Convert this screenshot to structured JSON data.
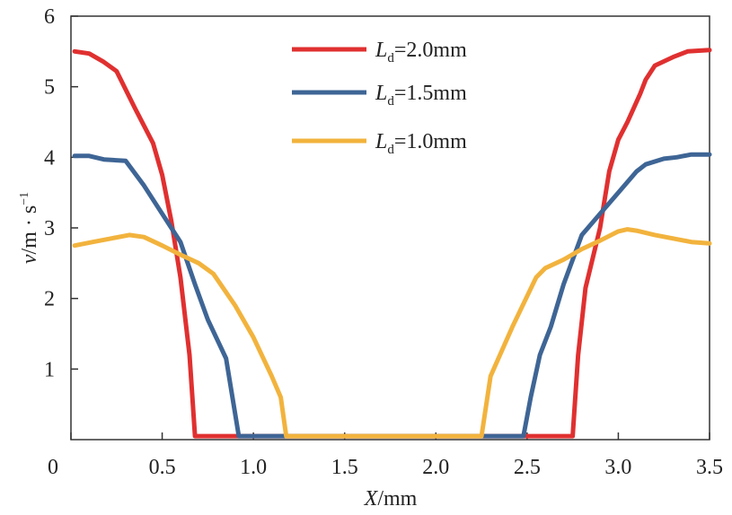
{
  "chart_data": {
    "type": "line",
    "xlabel": {
      "var": "X",
      "unit": "/mm"
    },
    "ylabel": {
      "var": "v",
      "unit": "/m · s",
      "exp": "−1"
    },
    "xlim": [
      0,
      3.5
    ],
    "ylim": [
      0,
      6
    ],
    "x_ticks": [
      {
        "value": 0,
        "label": "0"
      },
      {
        "value": 0.5,
        "label": "0.5"
      },
      {
        "value": 1.0,
        "label": "1.0"
      },
      {
        "value": 1.5,
        "label": "1.5"
      },
      {
        "value": 2.0,
        "label": "2.0"
      },
      {
        "value": 2.5,
        "label": "2.5"
      },
      {
        "value": 3.0,
        "label": "3.0"
      },
      {
        "value": 3.5,
        "label": "3.5"
      }
    ],
    "y_ticks": [
      {
        "value": 1,
        "label": "1"
      },
      {
        "value": 2,
        "label": "2"
      },
      {
        "value": 3,
        "label": "3"
      },
      {
        "value": 4,
        "label": "4"
      },
      {
        "value": 5,
        "label": "5"
      },
      {
        "value": 6,
        "label": "6"
      }
    ],
    "series": [
      {
        "name": "L_d=2.0mm",
        "legend": {
          "var": "L",
          "sub": "d",
          "value": "=2.0mm"
        },
        "color": "#E03030",
        "points": [
          [
            0.02,
            5.5
          ],
          [
            0.1,
            5.47
          ],
          [
            0.18,
            5.35
          ],
          [
            0.25,
            5.22
          ],
          [
            0.35,
            4.7
          ],
          [
            0.45,
            4.2
          ],
          [
            0.5,
            3.75
          ],
          [
            0.55,
            3.1
          ],
          [
            0.6,
            2.3
          ],
          [
            0.65,
            1.2
          ],
          [
            0.68,
            0.05
          ],
          [
            2.75,
            0.05
          ],
          [
            2.78,
            1.2
          ],
          [
            2.82,
            2.15
          ],
          [
            2.9,
            3.0
          ],
          [
            2.95,
            3.8
          ],
          [
            3.0,
            4.25
          ],
          [
            3.05,
            4.5
          ],
          [
            3.12,
            4.9
          ],
          [
            3.15,
            5.1
          ],
          [
            3.2,
            5.3
          ],
          [
            3.3,
            5.42
          ],
          [
            3.38,
            5.5
          ],
          [
            3.5,
            5.52
          ]
        ]
      },
      {
        "name": "L_d=1.5mm",
        "legend": {
          "var": "L",
          "sub": "d",
          "value": "=1.5mm"
        },
        "color": "#3E6595",
        "points": [
          [
            0.02,
            4.02
          ],
          [
            0.1,
            4.02
          ],
          [
            0.18,
            3.97
          ],
          [
            0.3,
            3.95
          ],
          [
            0.4,
            3.6
          ],
          [
            0.5,
            3.2
          ],
          [
            0.6,
            2.8
          ],
          [
            0.68,
            2.2
          ],
          [
            0.75,
            1.7
          ],
          [
            0.85,
            1.15
          ],
          [
            0.92,
            0.05
          ],
          [
            2.48,
            0.05
          ],
          [
            2.52,
            0.6
          ],
          [
            2.57,
            1.2
          ],
          [
            2.63,
            1.6
          ],
          [
            2.7,
            2.2
          ],
          [
            2.8,
            2.9
          ],
          [
            2.9,
            3.2
          ],
          [
            3.0,
            3.5
          ],
          [
            3.1,
            3.8
          ],
          [
            3.15,
            3.9
          ],
          [
            3.25,
            3.98
          ],
          [
            3.32,
            4.0
          ],
          [
            3.4,
            4.04
          ],
          [
            3.5,
            4.04
          ]
        ]
      },
      {
        "name": "L_d=1.0mm",
        "legend": {
          "var": "L",
          "sub": "d",
          "value": "=1.0mm"
        },
        "color": "#F2B33D",
        "points": [
          [
            0.02,
            2.75
          ],
          [
            0.12,
            2.8
          ],
          [
            0.22,
            2.85
          ],
          [
            0.32,
            2.9
          ],
          [
            0.4,
            2.87
          ],
          [
            0.5,
            2.75
          ],
          [
            0.6,
            2.62
          ],
          [
            0.7,
            2.5
          ],
          [
            0.78,
            2.35
          ],
          [
            0.9,
            1.9
          ],
          [
            1.0,
            1.45
          ],
          [
            1.1,
            0.9
          ],
          [
            1.15,
            0.6
          ],
          [
            1.18,
            0.05
          ],
          [
            2.25,
            0.05
          ],
          [
            2.3,
            0.9
          ],
          [
            2.42,
            1.6
          ],
          [
            2.55,
            2.3
          ],
          [
            2.6,
            2.43
          ],
          [
            2.7,
            2.55
          ],
          [
            2.8,
            2.7
          ],
          [
            2.9,
            2.82
          ],
          [
            3.0,
            2.95
          ],
          [
            3.05,
            2.98
          ],
          [
            3.1,
            2.96
          ],
          [
            3.2,
            2.9
          ],
          [
            3.3,
            2.85
          ],
          [
            3.4,
            2.8
          ],
          [
            3.5,
            2.78
          ]
        ]
      }
    ],
    "legend_position": "top-center"
  }
}
